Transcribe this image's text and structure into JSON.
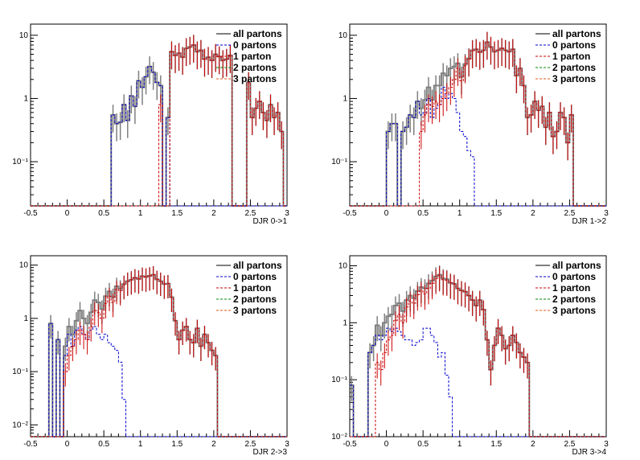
{
  "colors": {
    "all": "#7f7f7f",
    "p0": "#0000cc",
    "p1": "#cc0000",
    "p2": "#008800",
    "p3": "#e05a1a",
    "frame": "#000000"
  },
  "chart_data": [
    {
      "type": "histogram",
      "xlabel": "DJR 0->1",
      "ylabel": "",
      "yscale": "log",
      "xlim": [
        -0.5,
        3.0
      ],
      "ylim": [
        0.02,
        15
      ],
      "x_ticks": [
        "-0.5",
        "0",
        "0.5",
        "1",
        "1.5",
        "2",
        "2.5",
        "3"
      ],
      "y_ticks": [
        {
          "v": 0.1,
          "label": "10⁻¹"
        },
        {
          "v": 1,
          "label": "1"
        },
        {
          "v": 10,
          "label": "10"
        }
      ],
      "legend": [
        "all partons",
        "0 partons",
        "1 parton",
        "2 partons",
        "3 partons"
      ],
      "bin_edges_start": -0.5,
      "bin_width": 0.05,
      "series": [
        {
          "key": "all",
          "values": [
            0,
            0,
            0,
            0,
            0,
            0,
            0,
            0,
            0,
            0,
            0,
            0,
            0,
            0,
            0,
            0,
            0,
            0,
            0,
            0,
            0,
            0,
            0.55,
            0.4,
            0.42,
            0.8,
            0.45,
            1.1,
            0.75,
            1.9,
            1.5,
            2.2,
            3.2,
            2.6,
            1.8,
            1.6,
            0,
            0.5,
            5.5,
            4.8,
            5.2,
            4.5,
            6.2,
            6.5,
            7.0,
            5.5,
            5.8,
            4.2,
            4.5,
            4.0,
            5.0,
            4.6,
            4.0,
            4.2,
            4.8,
            0,
            0,
            0,
            0,
            1.8,
            0.5,
            0.7,
            0.9,
            0.6,
            0.45,
            0.8,
            0.5,
            0.6,
            0.3,
            0,
            0
          ]
        },
        {
          "key": "p0",
          "values": [
            0,
            0,
            0,
            0,
            0,
            0,
            0,
            0,
            0,
            0,
            0,
            0,
            0,
            0,
            0,
            0,
            0,
            0,
            0,
            0,
            0,
            0,
            0.55,
            0.4,
            0.42,
            0.8,
            0.45,
            1.1,
            0.75,
            1.9,
            1.5,
            2.2,
            3.2,
            2.6,
            1.8,
            1.6,
            0,
            0.5,
            0,
            0,
            0,
            0,
            0,
            0,
            0,
            0,
            0,
            0,
            0,
            0,
            0,
            0,
            0,
            0,
            0,
            0,
            0,
            0,
            0,
            0,
            0,
            0,
            0,
            0,
            0,
            0,
            0,
            0,
            0,
            0,
            0
          ]
        },
        {
          "key": "p1",
          "values": [
            0,
            0,
            0,
            0,
            0,
            0,
            0,
            0,
            0,
            0,
            0,
            0,
            0,
            0,
            0,
            0,
            0,
            0,
            0,
            0,
            0,
            0,
            0,
            0,
            0,
            0,
            0,
            0,
            0,
            0,
            0,
            0,
            0,
            0,
            0,
            0.8,
            0,
            0,
            5.5,
            4.8,
            5.2,
            4.5,
            6.2,
            6.5,
            7.0,
            5.5,
            5.8,
            4.2,
            4.5,
            4.0,
            5.0,
            4.6,
            4.0,
            4.2,
            4.8,
            0,
            0,
            0,
            0,
            1.8,
            0.5,
            0.7,
            0.9,
            0.6,
            0.45,
            0.8,
            0.5,
            0.6,
            0.3,
            0,
            0
          ]
        }
      ]
    },
    {
      "type": "histogram",
      "xlabel": "DJR 1->2",
      "ylabel": "",
      "yscale": "log",
      "xlim": [
        -0.5,
        3.0
      ],
      "ylim": [
        0.02,
        15
      ],
      "x_ticks": [
        "-0.5",
        "0",
        "0.5",
        "1",
        "1.5",
        "2",
        "2.5",
        "3"
      ],
      "y_ticks": [
        {
          "v": 0.1,
          "label": "10⁻¹"
        },
        {
          "v": 1,
          "label": "1"
        },
        {
          "v": 10,
          "label": "10"
        }
      ],
      "legend": [
        "all partons",
        "0 partons",
        "1 parton",
        "2 partons",
        "3 partons"
      ],
      "bin_edges_start": -0.5,
      "bin_width": 0.05,
      "series": [
        {
          "key": "all",
          "values": [
            0,
            0,
            0,
            0,
            0,
            0,
            0,
            0,
            0,
            0,
            0.3,
            0.4,
            0.4,
            0,
            0.3,
            0.35,
            0.55,
            0.5,
            0.9,
            0.7,
            0.95,
            1.5,
            0.95,
            1.6,
            1.6,
            2.5,
            2.3,
            3.0,
            3.2,
            3.6,
            2.2,
            3.5,
            4.3,
            5.8,
            6.0,
            5.4,
            5.8,
            7.8,
            6.5,
            5.5,
            5.8,
            6.2,
            5.8,
            5.5,
            6.0,
            2.3,
            3.0,
            1.6,
            0.5,
            0.55,
            0.9,
            0.65,
            0.75,
            0.35,
            0.6,
            0.25,
            0.3,
            0.6,
            0.5,
            0.2,
            0.55,
            0,
            0,
            0,
            0,
            0,
            0,
            0,
            0,
            0
          ]
        },
        {
          "key": "p0",
          "values": [
            0,
            0,
            0,
            0,
            0,
            0,
            0,
            0,
            0,
            0,
            0.3,
            0.4,
            0.4,
            0,
            0.3,
            0.35,
            0.55,
            0.5,
            0.9,
            0.55,
            0.6,
            1.0,
            0.5,
            0.7,
            0.8,
            1.5,
            1.0,
            1.2,
            1.0,
            0.6,
            0.3,
            0.25,
            0.15,
            0.12,
            0,
            0,
            0,
            0,
            0,
            0,
            0,
            0,
            0,
            0,
            0,
            0,
            0,
            0,
            0,
            0,
            0,
            0,
            0,
            0,
            0,
            0,
            0,
            0,
            0,
            0,
            0,
            0,
            0,
            0,
            0,
            0,
            0,
            0,
            0,
            0
          ]
        },
        {
          "key": "p1",
          "values": [
            0,
            0,
            0,
            0,
            0,
            0,
            0,
            0,
            0,
            0,
            0,
            0,
            0,
            0,
            0,
            0,
            0,
            0,
            0,
            0.3,
            0.55,
            0.8,
            0.75,
            0.9,
            0.8,
            1.0,
            1.2,
            1.5,
            2.0,
            3.0,
            1.9,
            3.3,
            4.2,
            5.7,
            6.0,
            5.4,
            5.8,
            7.8,
            6.5,
            5.5,
            5.8,
            6.2,
            5.8,
            5.5,
            6.0,
            2.3,
            3.0,
            1.6,
            0.5,
            0.55,
            0.9,
            0.65,
            0.75,
            0.35,
            0.6,
            0.25,
            0.3,
            0.6,
            0.5,
            0.2,
            0.55,
            0,
            0,
            0,
            0,
            0,
            0,
            0,
            0,
            0
          ]
        }
      ]
    },
    {
      "type": "histogram",
      "xlabel": "DJR 2->3",
      "ylabel": "",
      "yscale": "log",
      "xlim": [
        -0.5,
        3.0
      ],
      "ylim": [
        0.006,
        15
      ],
      "x_ticks": [
        "-0.5",
        "0",
        "0.5",
        "1",
        "1.5",
        "2",
        "2.5",
        "3"
      ],
      "y_ticks": [
        {
          "v": 0.01,
          "label": "10⁻²"
        },
        {
          "v": 0.1,
          "label": "10⁻¹"
        },
        {
          "v": 1,
          "label": "1"
        },
        {
          "v": 10,
          "label": "10"
        }
      ],
      "legend": [
        "all partons",
        "0 partons",
        "1 parton",
        "2 partons",
        "3 partons"
      ],
      "bin_edges_start": -0.5,
      "bin_width": 0.05,
      "series": [
        {
          "key": "all",
          "values": [
            0,
            0,
            0,
            0,
            0,
            0.8,
            0,
            0.4,
            0,
            0.3,
            0.7,
            0.5,
            0.9,
            1.4,
            1.0,
            0.8,
            1.3,
            2.2,
            2.0,
            1.5,
            2.6,
            3.2,
            2.5,
            4.0,
            3.6,
            4.4,
            5.0,
            5.3,
            5.8,
            5.5,
            6.2,
            6.0,
            6.3,
            6.6,
            5.4,
            5.0,
            4.4,
            4.5,
            2.5,
            0.9,
            0.4,
            0.6,
            0.7,
            0.4,
            0.35,
            0.65,
            0.3,
            0.5,
            0.35,
            0.25,
            0.2,
            0,
            0,
            0,
            0,
            0,
            0,
            0,
            0,
            0,
            0,
            0,
            0,
            0,
            0,
            0,
            0,
            0,
            0,
            0,
            0
          ]
        },
        {
          "key": "p0",
          "values": [
            0,
            0,
            0,
            0,
            0,
            0.8,
            0,
            0.4,
            0,
            0.2,
            0.5,
            0.3,
            0.6,
            0.7,
            0.5,
            0.4,
            0.6,
            0.7,
            0.5,
            0.4,
            0.5,
            0.35,
            0.3,
            0.25,
            0.15,
            0.03,
            0,
            0,
            0,
            0,
            0,
            0,
            0,
            0,
            0,
            0,
            0,
            0,
            0,
            0,
            0,
            0,
            0,
            0,
            0,
            0,
            0,
            0,
            0,
            0,
            0,
            0,
            0,
            0,
            0,
            0,
            0,
            0,
            0,
            0,
            0,
            0,
            0,
            0,
            0,
            0,
            0,
            0,
            0,
            0
          ]
        },
        {
          "key": "p1",
          "values": [
            0,
            0,
            0,
            0,
            0,
            0,
            0,
            0,
            0,
            0.1,
            0.2,
            0.3,
            0.4,
            0.6,
            0.5,
            0.4,
            0.7,
            1.4,
            1.3,
            1.0,
            1.9,
            2.6,
            2.0,
            3.5,
            3.3,
            4.3,
            5.0,
            5.3,
            5.8,
            5.5,
            6.2,
            6.0,
            6.3,
            6.6,
            5.4,
            5.0,
            4.4,
            4.5,
            2.5,
            0.9,
            0.4,
            0.6,
            0.7,
            0.4,
            0.35,
            0.65,
            0.3,
            0.5,
            0.35,
            0.25,
            0.2,
            0,
            0,
            0,
            0,
            0,
            0,
            0,
            0,
            0,
            0,
            0,
            0,
            0,
            0,
            0,
            0,
            0,
            0,
            0,
            0
          ]
        }
      ]
    },
    {
      "type": "histogram",
      "xlabel": "DJR 3->4",
      "ylabel": "",
      "yscale": "log",
      "xlim": [
        -0.5,
        3.0
      ],
      "ylim": [
        0.01,
        15
      ],
      "x_ticks": [
        "-0.5",
        "0",
        "0.5",
        "1",
        "1.5",
        "2",
        "2.5",
        "3"
      ],
      "y_ticks": [
        {
          "v": 0.01,
          "label": "10⁻²"
        },
        {
          "v": 0.1,
          "label": "10⁻¹"
        },
        {
          "v": 1,
          "label": "1"
        },
        {
          "v": 10,
          "label": "10"
        }
      ],
      "legend": [
        "all partons",
        "0 partons",
        "1 parton",
        "2 partons",
        "3 partons"
      ],
      "bin_edges_start": -0.5,
      "bin_width": 0.05,
      "series": [
        {
          "key": "all",
          "values": [
            0.08,
            0,
            0,
            0,
            0,
            0.3,
            0.4,
            0.9,
            0.6,
            1.0,
            1.3,
            1.4,
            2.0,
            2.2,
            1.6,
            2.5,
            3.0,
            2.7,
            3.6,
            4.2,
            4.0,
            4.9,
            5.5,
            6.5,
            7.0,
            6.0,
            5.8,
            5.0,
            4.8,
            4.0,
            3.7,
            3.5,
            3.0,
            2.5,
            2.0,
            2.5,
            1.7,
            0.5,
            0.15,
            0.4,
            0.8,
            0.6,
            0.35,
            0.4,
            0.6,
            0.45,
            0.3,
            0.25,
            0.2,
            0,
            0,
            0,
            0,
            0,
            0,
            0,
            0,
            0,
            0,
            0,
            0,
            0,
            0,
            0,
            0,
            0,
            0,
            0,
            0,
            0
          ]
        },
        {
          "key": "p0",
          "values": [
            0.08,
            0,
            0,
            0,
            0,
            0.3,
            0.4,
            0.6,
            0.5,
            0.6,
            0.8,
            0.7,
            0.8,
            0.7,
            0.6,
            0.5,
            0.5,
            0.4,
            0.45,
            0.5,
            0.8,
            0.8,
            0.6,
            0.45,
            0.25,
            0.3,
            0.12,
            0.05,
            0,
            0,
            0,
            0,
            0,
            0,
            0,
            0,
            0,
            0,
            0,
            0,
            0,
            0,
            0,
            0,
            0,
            0,
            0,
            0,
            0,
            0,
            0,
            0,
            0,
            0,
            0,
            0,
            0,
            0,
            0,
            0,
            0,
            0,
            0,
            0,
            0,
            0,
            0,
            0,
            0,
            0
          ]
        },
        {
          "key": "p1",
          "values": [
            0,
            0,
            0,
            0,
            0,
            0,
            0,
            0.2,
            0.15,
            0.3,
            0.5,
            0.6,
            1.1,
            1.4,
            1.0,
            1.9,
            2.4,
            2.2,
            3.1,
            3.6,
            3.2,
            4.0,
            4.9,
            6.0,
            6.7,
            5.7,
            5.6,
            5.0,
            4.8,
            4.0,
            3.7,
            3.5,
            3.0,
            2.5,
            2.0,
            2.5,
            1.7,
            0.5,
            0.15,
            0.4,
            0.8,
            0.6,
            0.35,
            0.4,
            0.6,
            0.45,
            0.3,
            0.25,
            0.2,
            0,
            0,
            0,
            0,
            0,
            0,
            0,
            0,
            0,
            0,
            0,
            0,
            0,
            0,
            0,
            0,
            0,
            0,
            0,
            0,
            0
          ]
        }
      ]
    }
  ]
}
